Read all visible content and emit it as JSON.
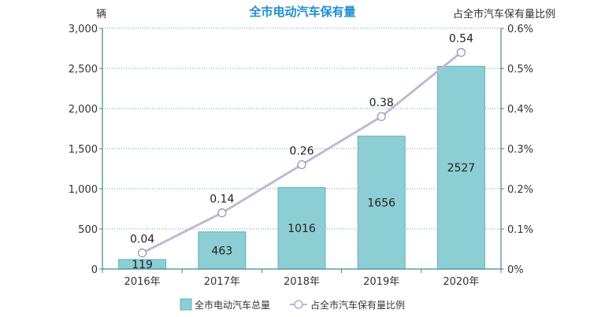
{
  "chart_data": {
    "type": "bar",
    "title": "全市电动汽车保有量",
    "left_unit": "辆",
    "right_unit": "占全市汽车保有量比例",
    "categories": [
      "2016年",
      "2017年",
      "2018年",
      "2019年",
      "2020年"
    ],
    "series": [
      {
        "name": "全市电动汽车总量",
        "kind": "bar",
        "axis": "left",
        "values": [
          119,
          463,
          1016,
          1656,
          2527
        ],
        "labels": [
          "119",
          "463",
          "1016",
          "1656",
          "2527"
        ],
        "color": "#8dcdd4"
      },
      {
        "name": "占全市汽车保有量比例",
        "kind": "line",
        "axis": "right",
        "values": [
          0.04,
          0.14,
          0.26,
          0.38,
          0.54
        ],
        "labels": [
          "0.04",
          "0.14",
          "0.26",
          "0.38",
          "0.54"
        ],
        "color": "#c5b6d6"
      }
    ],
    "y_left": {
      "min": 0,
      "max": 3000,
      "ticks": [
        0,
        500,
        1000,
        1500,
        2000,
        2500,
        3000
      ],
      "tick_labels": [
        "0",
        "500",
        "1,000",
        "1,500",
        "2,000",
        "2,500",
        "3,000"
      ]
    },
    "y_right": {
      "min": 0,
      "max": 0.6,
      "ticks": [
        0,
        0.1,
        0.2,
        0.3,
        0.4,
        0.5,
        0.6
      ],
      "tick_labels": [
        "0%",
        "0.1%",
        "0.2%",
        "0.3%",
        "0.4%",
        "0.5%",
        "0.6%"
      ]
    },
    "grid": true,
    "legend_position": "bottom"
  },
  "colors": {
    "title": "#1f8fd0",
    "bar_fill": "#8dcdd4",
    "bar_stroke": "#5fb3bd",
    "line": "#c5b6d6",
    "marker_stroke": "#9a8bb5",
    "axis": "#3d8a93",
    "grid": "#5aa4ab"
  }
}
